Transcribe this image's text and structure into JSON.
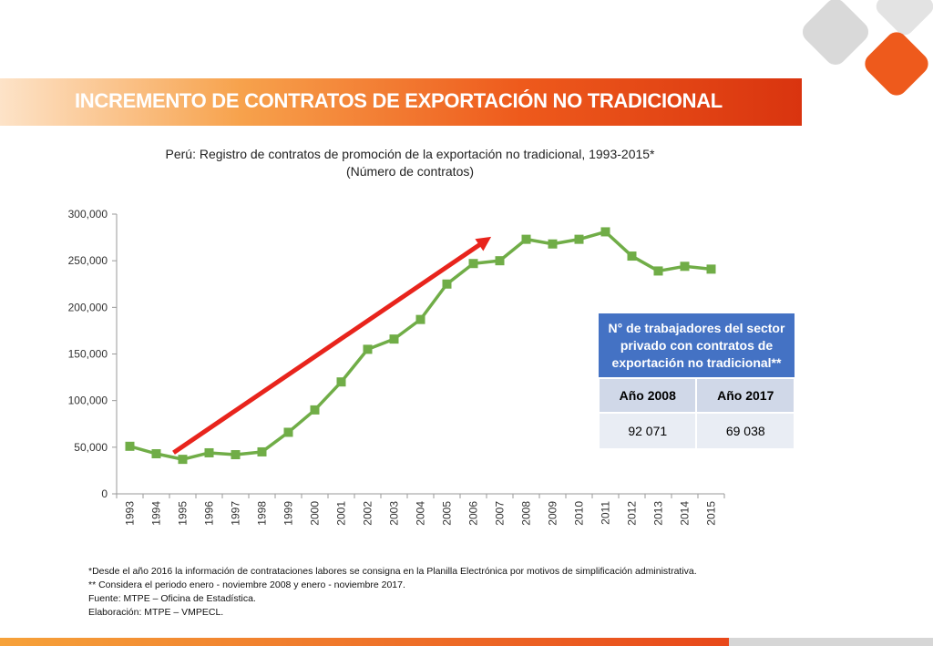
{
  "header": {
    "title": "INCREMENTO DE CONTRATOS DE EXPORTACIÓN NO TRADICIONAL"
  },
  "chart_data": {
    "type": "line",
    "title": "Perú: Registro de contratos de promoción de la exportación no tradicional, 1993-2015*",
    "subtitle": "(Número de contratos)",
    "x": [
      "1993",
      "1994",
      "1995",
      "1996",
      "1997",
      "1998",
      "1999",
      "2000",
      "2001",
      "2002",
      "2003",
      "2004",
      "2005",
      "2006",
      "2007",
      "2008",
      "2009",
      "2010",
      "2011",
      "2012",
      "2013",
      "2014",
      "2015"
    ],
    "series": [
      {
        "values": [
          51000,
          43000,
          37000,
          44000,
          42000,
          45000,
          66000,
          90000,
          120000,
          155000,
          166000,
          187000,
          225000,
          247000,
          250000,
          273000,
          268000,
          273000,
          281000,
          255000,
          239000,
          244000,
          241000
        ]
      }
    ],
    "yticks": [
      "0",
      "50,000",
      "100,000",
      "150,000",
      "200,000",
      "250,000",
      "300,000"
    ],
    "ylim": [
      0,
      300000
    ],
    "grid": false,
    "line_color": "#70ad47",
    "arrow_color": "#e8241c",
    "annotation_arrow": {
      "from": {
        "x": "1995",
        "y": 52000
      },
      "to": {
        "x": "2007",
        "y": 283000
      }
    }
  },
  "table": {
    "header": "N° de trabajadores del sector privado con contratos de exportación no tradicional**",
    "columns": [
      "Año 2008",
      "Año 2017"
    ],
    "values": [
      "92 071",
      "69 038"
    ]
  },
  "notes": [
    "*Desde el año 2016 la información de contrataciones labores se consigna en la Planilla Electrónica por motivos de simplificación administrativa.",
    "** Considera el periodo enero - noviembre 2008 y enero - noviembre 2017.",
    "Fuente: MTPE – Oficina de Estadística.",
    "Elaboración: MTPE – VMPECL."
  ],
  "colors": {
    "accent": "#e8481a",
    "table_header": "#4472c4"
  }
}
